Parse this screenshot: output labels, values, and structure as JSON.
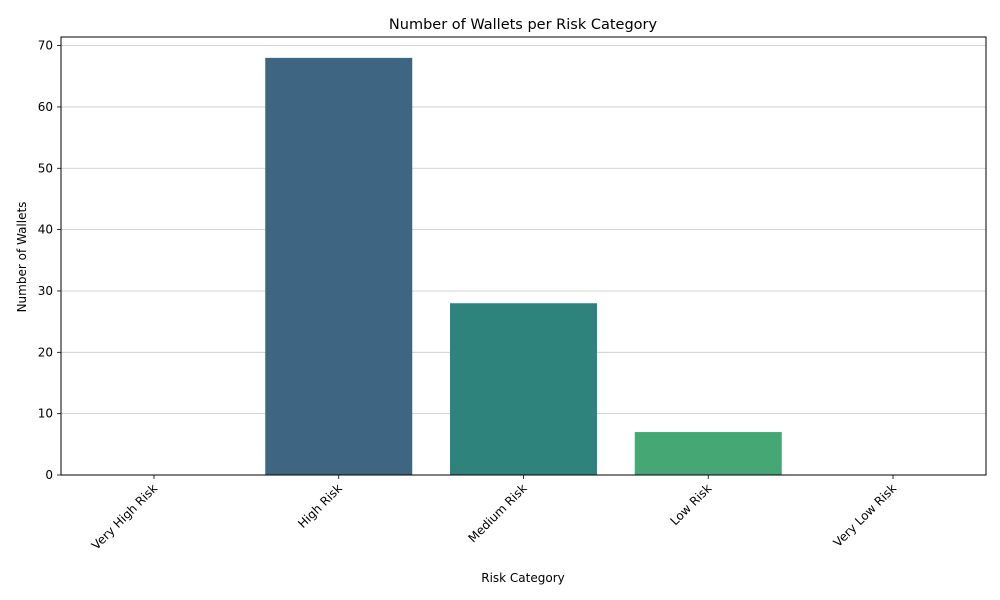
{
  "chart_data": {
    "type": "bar",
    "title": "Number of Wallets per Risk Category",
    "xlabel": "Risk Category",
    "ylabel": "Number of Wallets",
    "categories": [
      "Very High Risk",
      "High Risk",
      "Medium Risk",
      "Low Risk",
      "Very Low Risk"
    ],
    "values": [
      0,
      68,
      28,
      7,
      0
    ],
    "colors": [
      "#482878",
      "#3e6683",
      "#2e837c",
      "#44a774",
      "#7ad151"
    ],
    "ylim": [
      0,
      71.4
    ],
    "yticks": [
      0,
      10,
      20,
      30,
      40,
      50,
      60,
      70
    ],
    "grid": "horizontal",
    "grid_color": "#c8c8c8",
    "tick_rotation": 45
  }
}
